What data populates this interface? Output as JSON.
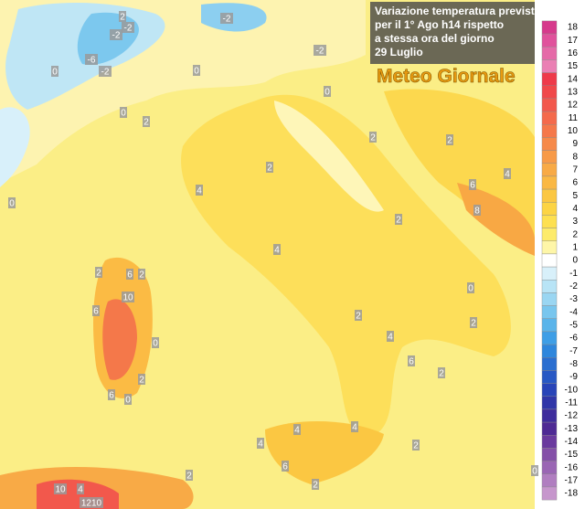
{
  "header": {
    "title_lines": [
      "Variazione temperatura prevista",
      "per il 1° Ago h14 rispetto",
      "a stessa ora del giorno",
      "29 Luglio"
    ],
    "logo": "Meteo Giornale"
  },
  "legend": {
    "labels": [
      "18",
      "17",
      "16",
      "15",
      "14",
      "13",
      "12",
      "11",
      "10",
      "9",
      "8",
      "7",
      "6",
      "5",
      "4",
      "3",
      "2",
      "1",
      "0",
      "-1",
      "-2",
      "-3",
      "-4",
      "-5",
      "-6",
      "-7",
      "-8",
      "-9",
      "-10",
      "-11",
      "-12",
      "-13",
      "-14",
      "-15",
      "-16",
      "-17",
      "-18"
    ],
    "colors": [
      "#d63a8c",
      "#e0529c",
      "#e56aa8",
      "#ea80b4",
      "#ee3a4a",
      "#f0484a",
      "#f2584c",
      "#f46a4c",
      "#f5784a",
      "#f68a4a",
      "#f79a48",
      "#f8aa46",
      "#fab844",
      "#fbc742",
      "#fcd444",
      "#fde050",
      "#fdeb6a",
      "#fef6a8",
      "#ffffff",
      "#d8f0fa",
      "#b8e4f6",
      "#9ad6f2",
      "#78c6ee",
      "#5ab4ea",
      "#3e9ee6",
      "#2e86dc",
      "#2a6ed0",
      "#2858c4",
      "#2844b8",
      "#3036a8",
      "#3e2c9c",
      "#4e2a94",
      "#6a3a9e",
      "#8450a8",
      "#9a66b4",
      "#b07ec0",
      "#c696cc"
    ]
  },
  "map_labels": [
    "2",
    "-2",
    "-2",
    "-2",
    "-2",
    "-6",
    "-2",
    "0",
    "0",
    "0",
    "0",
    "2",
    "2",
    "2",
    "2",
    "4",
    "4",
    "6",
    "8",
    "2",
    "0",
    "4",
    "2",
    "6",
    "2",
    "10",
    "6",
    "0",
    "2",
    "6",
    "0",
    "2",
    "4",
    "2",
    "6",
    "2",
    "0",
    "4",
    "4",
    "2",
    "4",
    "6",
    "2",
    "2",
    "10",
    "4",
    "1210",
    "0"
  ]
}
